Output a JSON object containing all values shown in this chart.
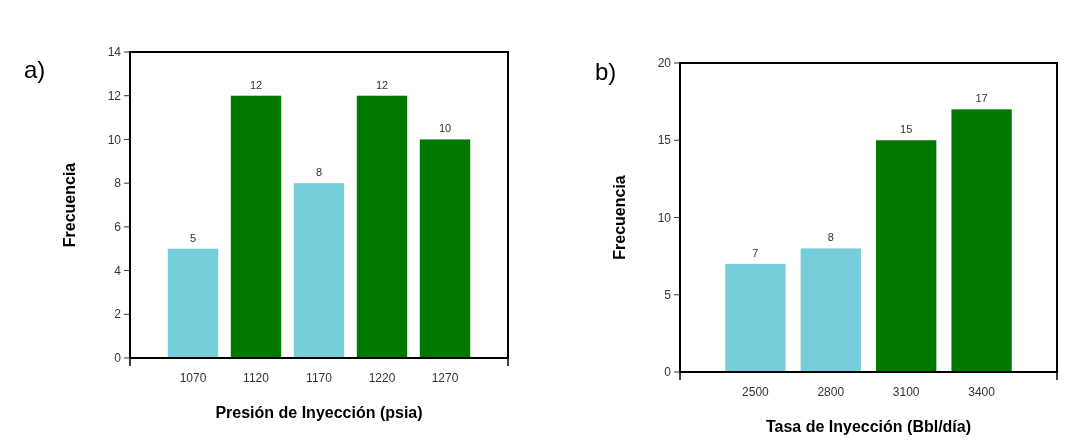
{
  "chart_data": [
    {
      "type": "bar",
      "title": "a)",
      "xlabel": "Presión de Inyección (psia)",
      "ylabel": "Frecuencia",
      "x": [
        1070,
        1120,
        1170,
        1220,
        1270
      ],
      "values": [
        5,
        12,
        8,
        12,
        10
      ],
      "colors": [
        "#77cedb",
        "#007800",
        "#77cedb",
        "#007800",
        "#007800"
      ],
      "xlim": [
        1020,
        1320
      ],
      "xticks": [
        1070,
        1120,
        1170,
        1220,
        1270
      ],
      "ylim": [
        0,
        14
      ],
      "yticks": [
        0,
        2,
        4,
        6,
        8,
        10,
        12,
        14
      ],
      "data_labels": true
    },
    {
      "type": "bar",
      "title": "b)",
      "xlabel": "Tasa de Inyección (Bbl/día)",
      "ylabel": "Frecuencia",
      "x": [
        2500,
        2800,
        3100,
        3400
      ],
      "values": [
        7,
        8,
        15,
        17
      ],
      "colors": [
        "#77cedb",
        "#77cedb",
        "#007800",
        "#007800"
      ],
      "xlim": [
        2200,
        3700
      ],
      "xticks": [
        2500,
        2800,
        3100,
        3400
      ],
      "ylim": [
        0,
        20
      ],
      "yticks": [
        0,
        5,
        10,
        15,
        20
      ],
      "data_labels": true
    }
  ]
}
